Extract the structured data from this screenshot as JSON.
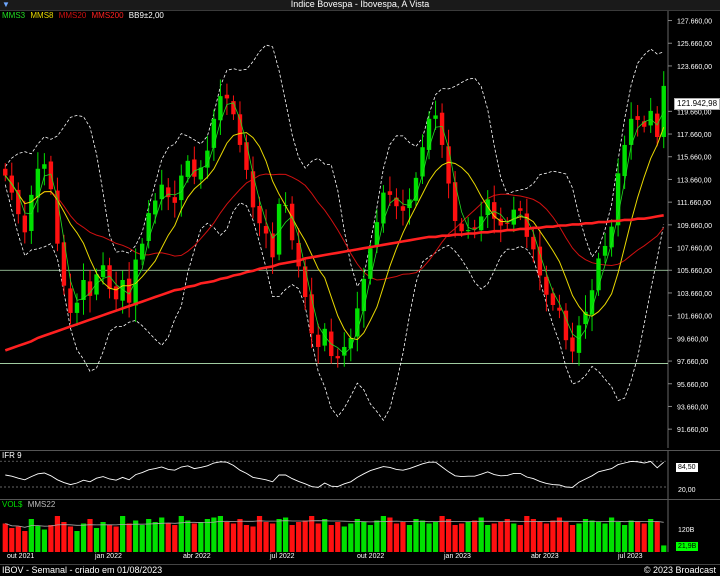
{
  "window": {
    "title": "Indice Bovespa - Ibovespa, A Vista"
  },
  "price_panel": {
    "legend": {
      "mms3": "MMS3",
      "mms8": "MMS8",
      "mms20": "MMS20",
      "mms200": "MMS200",
      "bb": "BB9±2,00"
    },
    "y_labels": [
      "127.660,00",
      "125.660,00",
      "123.660,00",
      "119.660,00",
      "117.660,00",
      "115.660,00",
      "113.660,00",
      "111.660,00",
      "109.660,00",
      "107.660,00",
      "105.660,00",
      "103.660,00",
      "101.660,00",
      "99.660,00",
      "97.660,00",
      "95.660,00",
      "93.660,00",
      "91.660,00"
    ],
    "last_price": "121.942,98"
  },
  "ifr_panel": {
    "legend": "IFR 9",
    "labels": [
      "84,50",
      "20,00"
    ]
  },
  "vol_panel": {
    "legend": "VOL$",
    "legend2": "MMS22",
    "labels": [
      "120B",
      "21,9B"
    ]
  },
  "x_labels": [
    "out 2021",
    "jan 2022",
    "abr 2022",
    "jul 2022",
    "out 2022",
    "jan 2023",
    "abr 2023",
    "jul 2023"
  ],
  "footer": {
    "left": "IBOV - Semanal - criado em 01/08/2023",
    "right": "© 2023 Broadcast"
  },
  "colors": {
    "up": "#00e000",
    "down": "#ff1010",
    "mms3": "#22dd22",
    "mms8": "#e8d800",
    "mms20": "#d01010",
    "mms200": "#ff2020",
    "bb": "#ffffff"
  },
  "chart_data": {
    "type": "candlestick",
    "title": "Indice Bovespa - Ibovespa, A Vista",
    "ylim": [
      90000,
      128500
    ],
    "horizontal_lines": [
      105660,
      97450
    ],
    "closes": [
      114000,
      112500,
      110600,
      109000,
      112300,
      114600,
      115000,
      112800,
      108000,
      104300,
      101900,
      102800,
      104800,
      103400,
      105300,
      106100,
      104000,
      103100,
      104800,
      102800,
      106600,
      108000,
      110700,
      111800,
      113200,
      112100,
      111600,
      114000,
      115300,
      113900,
      114700,
      116200,
      119000,
      121000,
      120800,
      119400,
      116700,
      114500,
      111200,
      109800,
      108900,
      106800,
      111500,
      111400,
      108300,
      106000,
      103300,
      100100,
      98900,
      100500,
      98100,
      97900,
      98900,
      99700,
      102300,
      104900,
      107600,
      109900,
      112500,
      112300,
      111300,
      110900,
      111900,
      113800,
      116500,
      119000,
      119300,
      116700,
      113300,
      110000,
      109100,
      109200,
      109300,
      110400,
      111900,
      110200,
      109600,
      109800,
      111000,
      110900,
      108600,
      107500,
      105200,
      103500,
      102600,
      102100,
      99500,
      98500,
      100800,
      102000,
      103900,
      106700,
      107800,
      109500,
      114200,
      116700,
      119000,
      118900,
      118300,
      119700,
      117400,
      121900
    ],
    "mms200": [
      98600,
      98800,
      99000,
      99200,
      99400,
      99700,
      99900,
      100100,
      100300,
      100500,
      100700,
      100900,
      101100,
      101300,
      101500,
      101700,
      101900,
      102100,
      102300,
      102500,
      102700,
      102900,
      103100,
      103300,
      103500,
      103700,
      103900,
      104000,
      104200,
      104300,
      104500,
      104600,
      104700,
      104900,
      105000,
      105200,
      105300,
      105500,
      105600,
      105800,
      105900,
      106000,
      106200,
      106300,
      106400,
      106500,
      106700,
      106800,
      106900,
      107000,
      107100,
      107200,
      107300,
      107400,
      107500,
      107600,
      107700,
      107800,
      107900,
      108000,
      108100,
      108200,
      108300,
      108400,
      108500,
      108600,
      108600,
      108700,
      108700,
      108800,
      108800,
      108900,
      108900,
      109000,
      109000,
      109100,
      109100,
      109200,
      109200,
      109300,
      109300,
      109400,
      109400,
      109500,
      109500,
      109600,
      109600,
      109700,
      109700,
      109800,
      109800,
      109900,
      109900,
      110000,
      110000,
      110100,
      110100,
      110200,
      110200,
      110300,
      110400,
      110500
    ],
    "ifr9": [
      50,
      47,
      42,
      38,
      46,
      53,
      55,
      48,
      38,
      31,
      26,
      30,
      37,
      33,
      42,
      46,
      40,
      37,
      44,
      38,
      51,
      56,
      63,
      66,
      70,
      64,
      62,
      70,
      73,
      66,
      69,
      73,
      80,
      83,
      82,
      74,
      62,
      54,
      44,
      41,
      38,
      33,
      50,
      50,
      41,
      34,
      28,
      21,
      19,
      30,
      22,
      21,
      28,
      33,
      44,
      53,
      61,
      66,
      71,
      69,
      64,
      62,
      66,
      72,
      78,
      82,
      82,
      70,
      58,
      48,
      46,
      47,
      47,
      52,
      58,
      51,
      48,
      49,
      54,
      54,
      45,
      41,
      34,
      29,
      26,
      25,
      20,
      19,
      32,
      40,
      48,
      58,
      62,
      66,
      76,
      80,
      84,
      83,
      80,
      84,
      68,
      82
    ],
    "volume_b": [
      95,
      80,
      85,
      70,
      110,
      88,
      75,
      90,
      120,
      100,
      85,
      70,
      95,
      110,
      80,
      100,
      90,
      85,
      120,
      95,
      105,
      90,
      110,
      100,
      115,
      95,
      90,
      120,
      105,
      95,
      100,
      110,
      115,
      120,
      100,
      95,
      110,
      90,
      85,
      120,
      100,
      95,
      110,
      115,
      90,
      100,
      105,
      120,
      95,
      110,
      90,
      100,
      85,
      95,
      110,
      100,
      90,
      105,
      120,
      115,
      95,
      100,
      90,
      110,
      105,
      95,
      100,
      120,
      110,
      90,
      95,
      100,
      105,
      115,
      90,
      95,
      100,
      110,
      95,
      90,
      120,
      110,
      100,
      95,
      105,
      115,
      100,
      90,
      95,
      110,
      105,
      100,
      95,
      115,
      100,
      90,
      105,
      100,
      95,
      110,
      100,
      21.9
    ],
    "ifr_levels": [
      84.5,
      20.0
    ]
  }
}
